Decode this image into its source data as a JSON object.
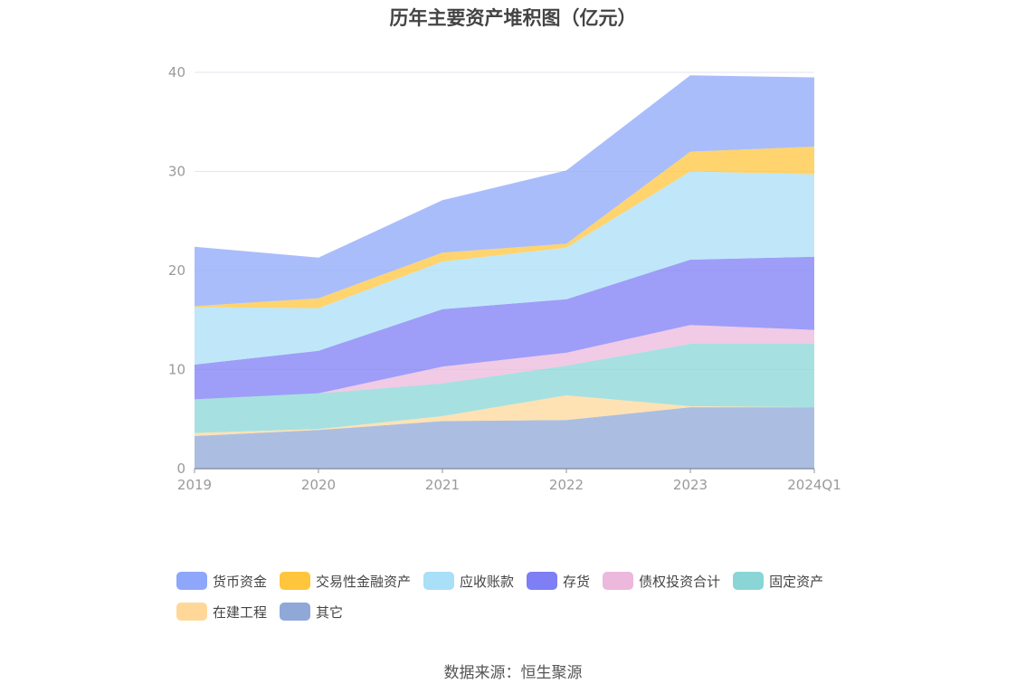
{
  "source": "数据来源：恒生聚源",
  "chart_data": {
    "type": "area",
    "stacked": true,
    "title": "历年主要资产堆积图（亿元）",
    "x": [
      "2019",
      "2020",
      "2021",
      "2022",
      "2023",
      "2024Q1"
    ],
    "ylim": [
      0,
      40
    ],
    "yticks": [
      0,
      10,
      20,
      30,
      40
    ],
    "grid": true,
    "legend_position": "bottom",
    "series": [
      {
        "name": "其它",
        "color": "#8FA8D8",
        "values": [
          3.3,
          3.9,
          4.8,
          4.9,
          6.2,
          6.2
        ]
      },
      {
        "name": "在建工程",
        "color": "#FFD899",
        "values": [
          0.3,
          0.1,
          0.5,
          2.5,
          0.1,
          0.0
        ]
      },
      {
        "name": "固定资产",
        "color": "#8AD6D6",
        "values": [
          3.4,
          3.6,
          3.3,
          3.0,
          6.3,
          6.4
        ]
      },
      {
        "name": "债权投资合计",
        "color": "#ECB8DC",
        "values": [
          0.0,
          0.0,
          1.7,
          1.3,
          1.9,
          1.4
        ]
      },
      {
        "name": "存货",
        "color": "#7E7EF5",
        "values": [
          3.5,
          4.3,
          5.8,
          5.4,
          6.6,
          7.4
        ]
      },
      {
        "name": "应收账款",
        "color": "#A9DFF7",
        "values": [
          5.8,
          4.3,
          4.8,
          5.2,
          8.9,
          8.3
        ]
      },
      {
        "name": "交易性金融资产",
        "color": "#FFC53D",
        "values": [
          0.1,
          1.0,
          0.9,
          0.4,
          2.0,
          2.8
        ]
      },
      {
        "name": "货币资金",
        "color": "#8EA7FA",
        "values": [
          6.0,
          4.1,
          5.3,
          7.4,
          7.7,
          7.0
        ]
      }
    ],
    "legend_order": [
      "货币资金",
      "交易性金融资产",
      "应收账款",
      "存货",
      "债权投资合计",
      "固定资产",
      "在建工程",
      "其它"
    ]
  }
}
